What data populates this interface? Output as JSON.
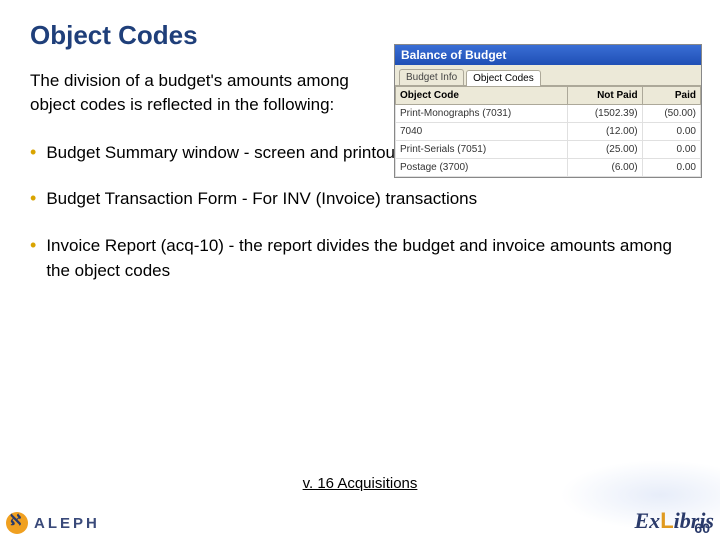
{
  "title": "Object Codes",
  "intro": "The division of a budget's amounts among object codes is reflected in the following:",
  "bullets": [
    "Budget Summary window - screen and printout",
    "Budget Transaction Form - For INV (Invoice) transactions",
    "Invoice Report (acq-10) - the report divides the budget and invoice amounts among the object codes"
  ],
  "footer_text": "v. 16 Acquisitions",
  "page_number": "60",
  "aleph_label": "ALEPH",
  "exlibris": {
    "ex": "Ex",
    "l": "L",
    "ibris": "ibris"
  },
  "mock": {
    "window_title": "Balance of Budget",
    "tabs": [
      "Budget Info",
      "Object Codes"
    ],
    "active_tab": 1,
    "columns": [
      "Object Code",
      "Not Paid",
      "Paid"
    ],
    "rows": [
      {
        "code": "Print-Monographs (7031)",
        "not_paid": "(1502.39)",
        "paid": "(50.00)"
      },
      {
        "code": "7040",
        "not_paid": "(12.00)",
        "paid": "0.00"
      },
      {
        "code": "Print-Serials (7051)",
        "not_paid": "(25.00)",
        "paid": "0.00"
      },
      {
        "code": "Postage (3700)",
        "not_paid": "(6.00)",
        "paid": "0.00"
      }
    ]
  },
  "colors": {
    "title": "#1f3f7a",
    "bullet": "#d9a400",
    "titlebar_start": "#3a6ed5",
    "titlebar_end": "#1f4fb5"
  }
}
